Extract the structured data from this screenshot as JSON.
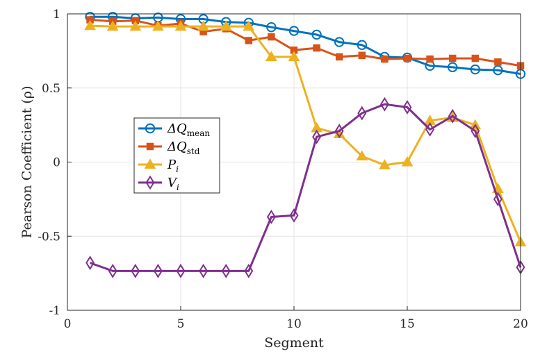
{
  "chart_data": {
    "type": "line",
    "xlabel": "Segment",
    "ylabel": "Pearson Coefficient (ρ)",
    "xlim": [
      0,
      20
    ],
    "ylim": [
      -1,
      1
    ],
    "xticks": [
      "0",
      "5",
      "10",
      "15",
      "20"
    ],
    "yticks": [
      "-1",
      "-0.5",
      "0",
      "0.5",
      "1"
    ],
    "grid": true,
    "legend_position": "center-left",
    "x": [
      1,
      2,
      3,
      4,
      5,
      6,
      7,
      8,
      9,
      10,
      11,
      12,
      13,
      14,
      15,
      16,
      17,
      18,
      19,
      20
    ],
    "series": [
      {
        "name": "ΔQmean",
        "name_main": "ΔQ",
        "name_sub": "mean",
        "color": "#0072BD",
        "marker": "circle",
        "values": [
          0.98,
          0.98,
          0.97,
          0.975,
          0.965,
          0.965,
          0.945,
          0.94,
          0.91,
          0.885,
          0.86,
          0.81,
          0.79,
          0.71,
          0.705,
          0.65,
          0.64,
          0.625,
          0.62,
          0.595
        ]
      },
      {
        "name": "ΔQstd",
        "name_main": "ΔQ",
        "name_sub": "std",
        "color": "#D95319",
        "marker": "square",
        "values": [
          0.96,
          0.95,
          0.955,
          0.92,
          0.935,
          0.88,
          0.9,
          0.82,
          0.845,
          0.755,
          0.77,
          0.71,
          0.72,
          0.695,
          0.7,
          0.695,
          0.7,
          0.7,
          0.675,
          0.65
        ]
      },
      {
        "name": "Pi",
        "name_main": "P",
        "name_sub": "i",
        "color": "#EDB120",
        "marker": "triangle",
        "values": [
          0.92,
          0.915,
          0.915,
          0.915,
          0.915,
          0.915,
          0.915,
          0.915,
          0.71,
          0.71,
          0.23,
          0.19,
          0.04,
          -0.02,
          0.0,
          0.28,
          0.3,
          0.25,
          -0.18,
          -0.54
        ]
      },
      {
        "name": "Vi",
        "name_main": "V",
        "name_sub": "i",
        "color": "#7E2F8E",
        "marker": "diamond",
        "values": [
          -0.68,
          -0.735,
          -0.735,
          -0.735,
          -0.735,
          -0.735,
          -0.735,
          -0.735,
          -0.37,
          -0.36,
          0.17,
          0.21,
          0.33,
          0.39,
          0.37,
          0.22,
          0.31,
          0.21,
          -0.25,
          -0.71
        ]
      }
    ]
  }
}
